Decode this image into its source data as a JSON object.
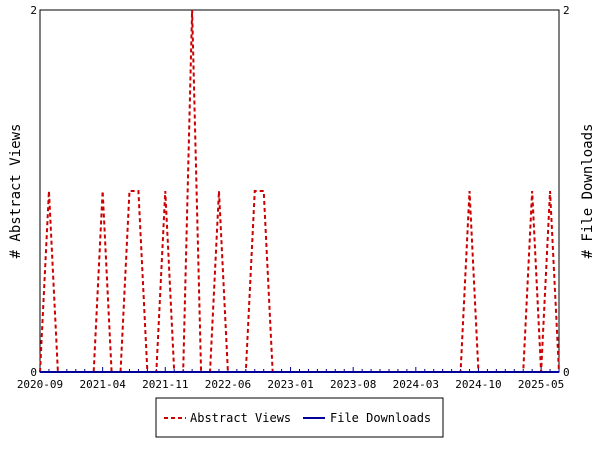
{
  "chart_data": {
    "type": "line",
    "x_tick_labels": [
      "2020-09",
      "2021-04",
      "2021-11",
      "2022-06",
      "2023-01",
      "2023-08",
      "2024-03",
      "2024-10",
      "2025-05"
    ],
    "y_left_label": "# Abstract Views",
    "y_right_label": "# File Downloads",
    "y_left_ticks": [
      "0",
      "2"
    ],
    "y_right_ticks": [
      "0",
      "2"
    ],
    "ylim": [
      0,
      2
    ],
    "n_months": 59,
    "series": [
      {
        "name": "Abstract Views",
        "color": "#cc0000",
        "style": "dashed",
        "axis": "left",
        "values": [
          0,
          1,
          0,
          0,
          0,
          0,
          0,
          1,
          0,
          0,
          1,
          1,
          0,
          0,
          1,
          0,
          0,
          2,
          0,
          0,
          1,
          0,
          0,
          0,
          1,
          1,
          0,
          0,
          0,
          0,
          0,
          0,
          0,
          0,
          0,
          0,
          0,
          0,
          0,
          0,
          0,
          0,
          0,
          0,
          0,
          0,
          0,
          0,
          1,
          0,
          0,
          0,
          0,
          0,
          0,
          1,
          0,
          1,
          0
        ]
      },
      {
        "name": "File Downloads",
        "color": "#000099",
        "style": "solid",
        "axis": "right",
        "values": [
          0,
          0,
          0,
          0,
          0,
          0,
          0,
          0,
          0,
          0,
          0,
          0,
          0,
          0,
          0,
          0,
          0,
          0,
          0,
          0,
          0,
          0,
          0,
          0,
          0,
          0,
          0,
          0,
          0,
          0,
          0,
          0,
          0,
          0,
          0,
          0,
          0,
          0,
          0,
          0,
          0,
          0,
          0,
          0,
          0,
          0,
          0,
          0,
          0,
          0,
          0,
          0,
          0,
          0,
          0,
          0,
          0,
          0,
          0
        ]
      }
    ],
    "grid": false,
    "legend_position": "bottom"
  }
}
